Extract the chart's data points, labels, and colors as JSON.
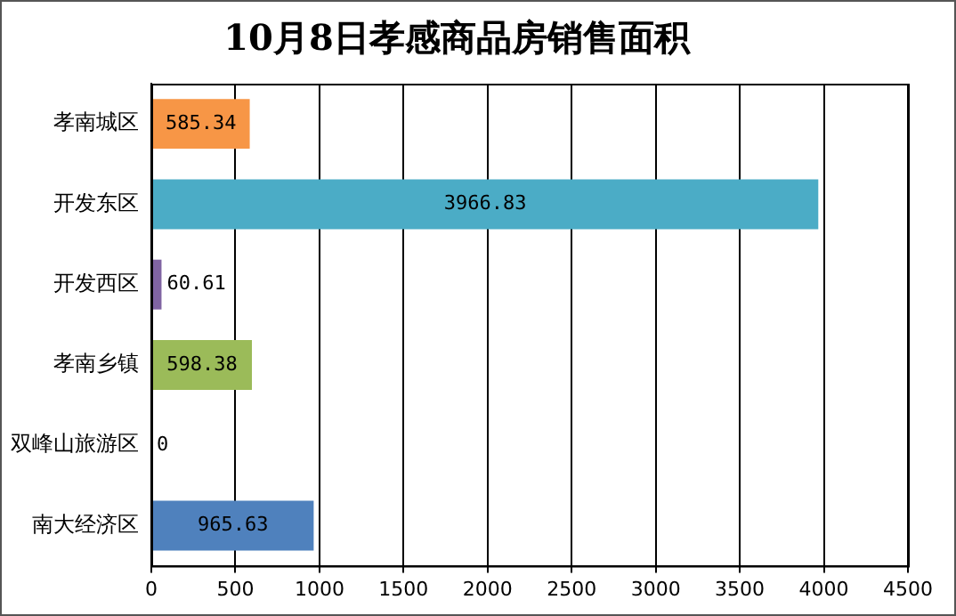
{
  "chart_data": {
    "type": "bar",
    "title": "10月8日孝感商品房销售面积",
    "orientation": "horizontal",
    "categories": [
      "孝南城区",
      "开发东区",
      "开发西区",
      "孝南乡镇",
      "双峰山旅游区",
      "南大经济区"
    ],
    "values": [
      585.34,
      3966.83,
      60.61,
      598.38,
      0,
      965.63
    ],
    "colors": [
      "#f79646",
      "#4bacc6",
      "#8064a2",
      "#9bbb59",
      "#c0504d",
      "#4f81bd"
    ],
    "xlim": [
      0,
      4500
    ],
    "xticks": [
      0,
      500,
      1000,
      1500,
      2000,
      2500,
      3000,
      3500,
      4000,
      4500
    ],
    "grid": "x",
    "legend": false,
    "data_labels": true
  }
}
